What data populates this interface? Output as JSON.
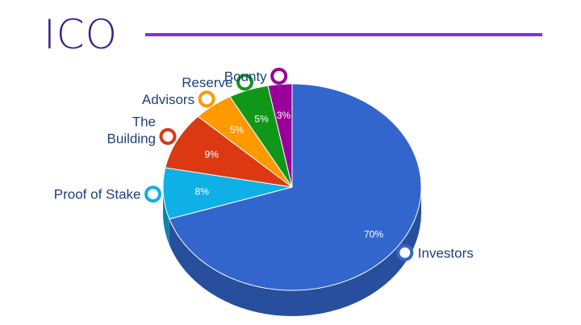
{
  "slide": {
    "title": "ICO"
  },
  "chart_data": {
    "type": "pie",
    "style": "3d",
    "slices": [
      {
        "label": "Investors",
        "value": 70,
        "display": "70%",
        "color": "#3366cc",
        "side_color": "#274f9e",
        "label_color": "#1f3f7a"
      },
      {
        "label": "Proof of Stake",
        "value": 8,
        "display": "8%",
        "color": "#0fb0e5",
        "side_color": "#0c83aa",
        "label_color": "#1f3f7a"
      },
      {
        "label": "The\nBuilding",
        "value": 9,
        "display": "9%",
        "color": "#dc3912",
        "side_color": "#a52a0d",
        "label_color": "#1f3f7a"
      },
      {
        "label": "Advisors",
        "value": 5,
        "display": "5%",
        "color": "#ff9900",
        "side_color": "#c27400",
        "label_color": "#1f3f7a"
      },
      {
        "label": "Reserve",
        "value": 5,
        "display": "5%",
        "color": "#109618",
        "side_color": "#0b6e11",
        "label_color": "#1f3f7a"
      },
      {
        "label": "Bounty",
        "value": 3,
        "display": "3%",
        "color": "#990099",
        "side_color": "#700070",
        "label_color": "#1f3f7a"
      }
    ]
  }
}
